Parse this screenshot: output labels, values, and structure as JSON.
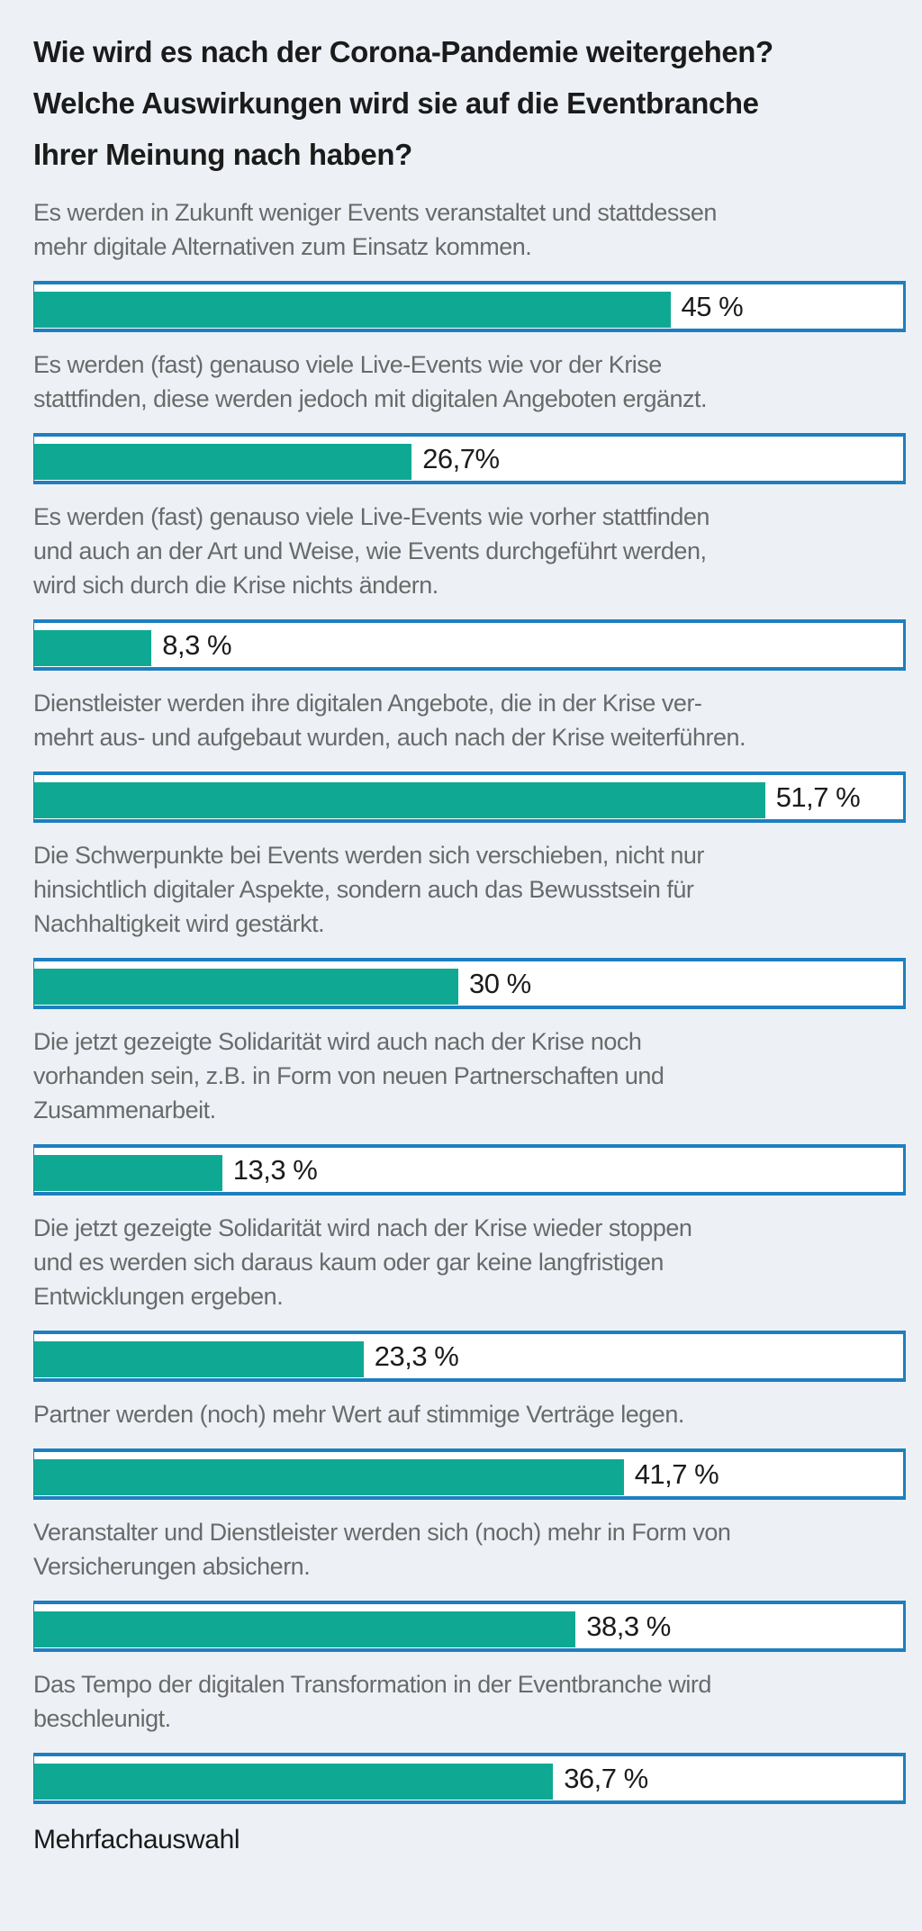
{
  "chart_data": {
    "type": "bar",
    "orientation": "horizontal",
    "title": [
      "Wie wird es nach der Corona-Pandemie weitergehen?",
      "Welche Auswirkungen wird sie auf die Eventbranche",
      "Ihrer Meinung nach haben?"
    ],
    "unit": "%",
    "colors": {
      "bar": "#0fa993",
      "frame": "#1e7fc0",
      "background": "#edf1f6"
    },
    "items": [
      {
        "label": [
          "Es werden in Zukunft weniger Events veranstaltet und stattdessen",
          "mehr digitale Alternativen zum Einsatz kommen."
        ],
        "value": 45,
        "value_label": "45 %"
      },
      {
        "label": [
          "Es werden (fast) genauso viele Live-Events wie vor der Krise",
          "stattfinden, diese werden jedoch mit digitalen Angeboten ergänzt."
        ],
        "value": 26.7,
        "value_label": "26,7%"
      },
      {
        "label": [
          "Es werden (fast) genauso viele Live-Events wie vorher stattfinden",
          "und auch an der Art und Weise, wie Events durchgeführt werden,",
          "wird sich durch die Krise nichts ändern."
        ],
        "value": 8.3,
        "value_label": "8,3 %"
      },
      {
        "label": [
          "Dienstleister werden ihre digitalen Angebote, die in der Krise ver-",
          "mehrt aus- und aufgebaut wurden, auch nach der Krise weiterführen."
        ],
        "value": 51.7,
        "value_label": "51,7 %"
      },
      {
        "label": [
          "Die Schwerpunkte bei Events werden sich verschieben, nicht nur",
          "hinsichtlich digitaler Aspekte, sondern auch das Bewusstsein für",
          "Nachhaltigkeit wird gestärkt."
        ],
        "value": 30,
        "value_label": "30 %"
      },
      {
        "label": [
          "Die jetzt gezeigte Solidarität wird auch nach der Krise noch",
          "vorhanden sein, z.B. in Form von neuen Partnerschaften und",
          "Zusammenarbeit."
        ],
        "value": 13.3,
        "value_label": "13,3 %"
      },
      {
        "label": [
          "Die jetzt gezeigte Solidarität wird nach der Krise wieder stoppen",
          "und es werden sich daraus kaum oder gar keine langfristigen",
          "Entwicklungen ergeben."
        ],
        "value": 23.3,
        "value_label": "23,3 %"
      },
      {
        "label": [
          "Partner werden (noch) mehr Wert auf stimmige Verträge legen."
        ],
        "value": 41.7,
        "value_label": "41,7 %"
      },
      {
        "label": [
          "Veranstalter und Dienstleister werden sich (noch) mehr in Form von",
          "Versicherungen absichern."
        ],
        "value": 38.3,
        "value_label": "38,3 %"
      },
      {
        "label": [
          "Das Tempo der digitalen Transformation in der Eventbranche wird",
          "beschleunigt."
        ],
        "value": 36.7,
        "value_label": "36,7 %"
      }
    ],
    "footnote": "Mehrfachauswahl"
  }
}
